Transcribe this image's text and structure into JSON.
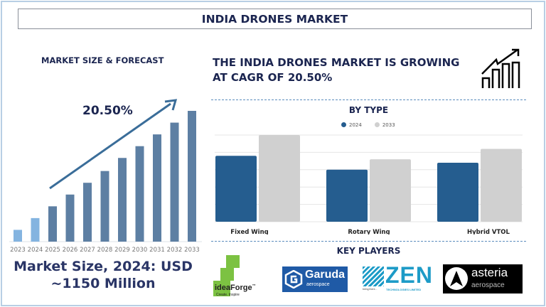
{
  "title": "INDIA DRONES MARKET",
  "left": {
    "heading": "MARKET SIZE & FORECAST",
    "cagr_label": "20.50%",
    "market_size_line1": "Market Size, 2024: USD",
    "market_size_line2": "~1150 Million"
  },
  "right": {
    "headline_line1": "THE INDIA DRONES MARKET IS GROWING",
    "headline_line2": "AT CAGR OF 20.50%",
    "by_type_heading": "BY TYPE",
    "key_players_heading": "KEY PLAYERS"
  },
  "colors": {
    "navy": "#1b2550",
    "bar_forecast": "#5d7fa3",
    "bar_history": "#84b4e0",
    "series_2024": "#255d8f",
    "series_2033": "#d0d0d0",
    "arrow": "#3a6d99"
  },
  "chart_data": [
    {
      "type": "bar",
      "title": "",
      "categories": [
        "2023",
        "2024",
        "2025",
        "2026",
        "2027",
        "2028",
        "2029",
        "2030",
        "2031",
        "2032",
        "2033"
      ],
      "values": [
        9,
        18,
        27,
        36,
        45,
        54,
        64,
        73,
        82,
        91,
        100
      ],
      "ylim": [
        0,
        100
      ],
      "grid": false,
      "annotation": "20.50%"
    },
    {
      "type": "bar",
      "title": "BY TYPE",
      "categories": [
        "Fixed Wing",
        "Rotary Wing",
        "Hybrid VTOL"
      ],
      "series": [
        {
          "name": "2024",
          "values": [
            3.8,
            3.0,
            3.4
          ]
        },
        {
          "name": "2033",
          "values": [
            5.0,
            3.6,
            4.2
          ]
        }
      ],
      "ylim": [
        0,
        5
      ],
      "grid": true,
      "legend": "top-center"
    }
  ],
  "players": [
    {
      "name": "ideaForge",
      "tagline": "Create. Inspire",
      "tm": "™"
    },
    {
      "name": "Garuda",
      "sub": "aerospace"
    },
    {
      "name": "ZEN",
      "sub": "TECHNOLOGIES LIMITED",
      "tagline": "being there..."
    },
    {
      "name": "asteria",
      "sub": "aerospace"
    }
  ]
}
